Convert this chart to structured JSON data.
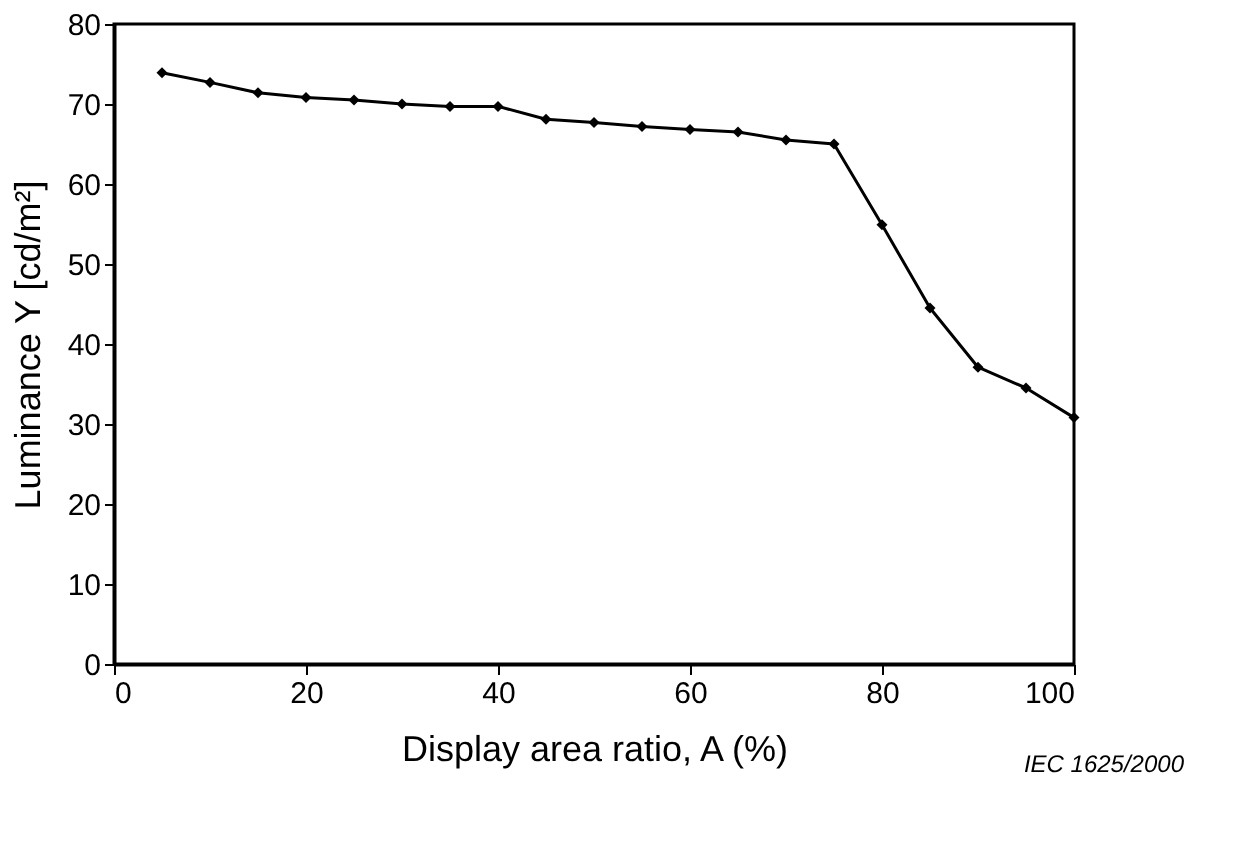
{
  "chart_data": {
    "type": "line",
    "xlabel": "Display area ratio, A (%)",
    "ylabel": "Luminance Y [cd/m²]",
    "x": [
      5,
      10,
      15,
      20,
      25,
      30,
      35,
      40,
      45,
      50,
      55,
      60,
      65,
      70,
      75,
      80,
      85,
      90,
      95,
      100
    ],
    "series": [
      {
        "color": "#000000",
        "values": [
          73.9,
          72.7,
          71.4,
          70.8,
          70.5,
          70.0,
          69.7,
          69.7,
          68.1,
          67.7,
          67.2,
          66.8,
          66.5,
          65.5,
          65.0,
          54.9,
          44.5,
          37.1,
          34.5,
          30.8
        ]
      }
    ],
    "xlim": [
      0,
      100
    ],
    "xticks": [
      0,
      20,
      40,
      60,
      80,
      100
    ],
    "ylim": [
      0,
      80
    ],
    "yticks": [
      0,
      10,
      20,
      30,
      40,
      50,
      60,
      70,
      80
    ],
    "marker": "diamond",
    "line_style": "solid",
    "grid": false,
    "annotations": [
      "IEC 1625/2000"
    ]
  }
}
